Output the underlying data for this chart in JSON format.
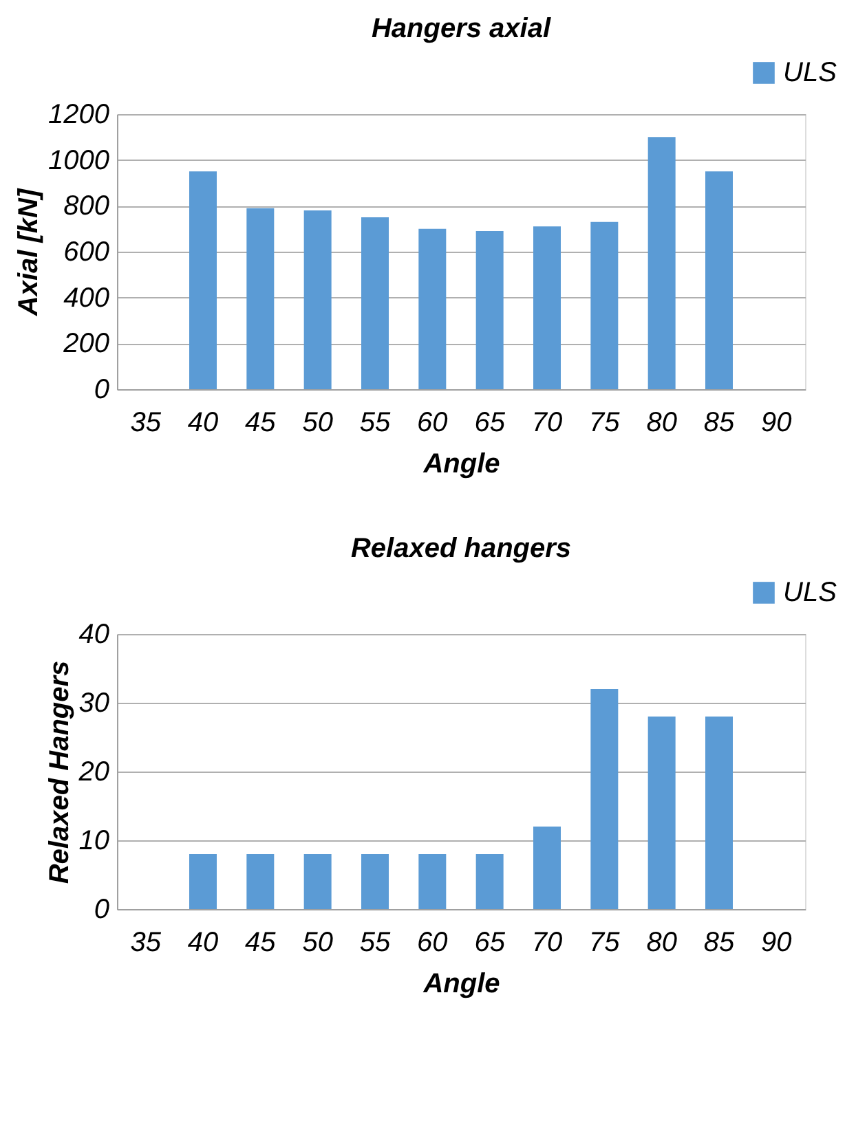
{
  "chart_data": [
    {
      "type": "bar",
      "title": "Hangers axial",
      "xlabel": "Angle",
      "ylabel": "Axial  [kN]",
      "categories": [
        "35",
        "40",
        "45",
        "50",
        "55",
        "60",
        "65",
        "70",
        "75",
        "80",
        "85",
        "90"
      ],
      "series": [
        {
          "name": "ULS",
          "color": "#5b9bd5",
          "values": [
            null,
            950,
            790,
            780,
            750,
            700,
            690,
            710,
            730,
            1100,
            950,
            null
          ]
        }
      ],
      "ylim": [
        0,
        1200
      ],
      "yticks": [
        0,
        200,
        400,
        600,
        800,
        1000,
        1200
      ],
      "grid": "y",
      "legend": "top right"
    },
    {
      "type": "bar",
      "title": "Relaxed hangers",
      "xlabel": "Angle",
      "ylabel": "Relaxed Hangers",
      "categories": [
        "35",
        "40",
        "45",
        "50",
        "55",
        "60",
        "65",
        "70",
        "75",
        "80",
        "85",
        "90"
      ],
      "series": [
        {
          "name": "ULS",
          "color": "#5b9bd5",
          "values": [
            null,
            8,
            8,
            8,
            8,
            8,
            8,
            12,
            32,
            28,
            28,
            null
          ]
        }
      ],
      "ylim": [
        0,
        40
      ],
      "yticks": [
        0,
        10,
        20,
        30,
        40
      ],
      "grid": "y",
      "legend": "top right"
    }
  ]
}
